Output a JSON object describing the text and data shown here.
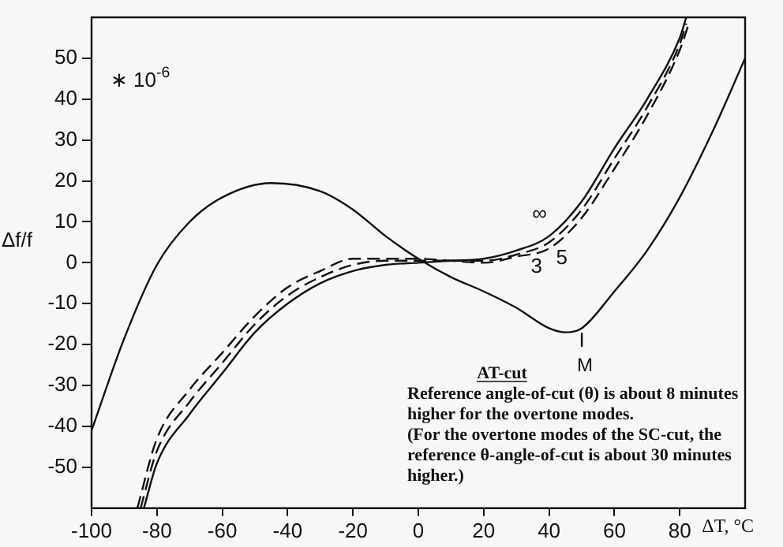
{
  "chart_data": {
    "type": "line",
    "xlabel": "ΔT, °C",
    "ylabel": "Δf/f",
    "xlim": [
      -100,
      100
    ],
    "ylim": [
      -60,
      60
    ],
    "xticks": [
      -100,
      -80,
      -60,
      -40,
      -20,
      0,
      20,
      40,
      60,
      80
    ],
    "yticks": [
      -50,
      -40,
      -30,
      -20,
      -10,
      0,
      10,
      20,
      30,
      40,
      50
    ],
    "grid": false,
    "legend": false,
    "series": [
      {
        "name": "I",
        "color": "#111111",
        "line_style": "solid",
        "x": [
          -100,
          -90,
          -80,
          -70,
          -60,
          -45,
          -30,
          -20,
          -10,
          0,
          10,
          20,
          30,
          40,
          45,
          50,
          60,
          70,
          80,
          90,
          100
        ],
        "values": [
          -41,
          -18.5,
          -0.5,
          10,
          16,
          19.5,
          17.5,
          13,
          6.5,
          1,
          -3.5,
          -7,
          -11,
          -16,
          -17,
          -16,
          -7,
          3,
          16,
          32,
          50
        ]
      },
      {
        "name": "∞",
        "color": "#111111",
        "line_style": "solid",
        "x": [
          -84,
          -80,
          -70,
          -60,
          -50,
          -40,
          -30,
          -20,
          -10,
          0,
          10,
          20,
          30,
          40,
          50,
          60,
          70,
          80,
          82
        ],
        "values": [
          -60,
          -49,
          -37,
          -27,
          -17,
          -10,
          -5,
          -2,
          -0.5,
          0,
          0.5,
          1,
          3,
          6.5,
          15,
          28,
          40,
          55,
          60
        ]
      },
      {
        "name": "5",
        "color": "#111111",
        "line_style": "dashed",
        "x": [
          -85,
          -80,
          -70,
          -60,
          -50,
          -40,
          -30,
          -20,
          -10,
          0,
          10,
          20,
          30,
          40,
          50,
          60,
          70,
          80,
          82
        ],
        "values": [
          -60,
          -46,
          -34,
          -24.5,
          -15,
          -8,
          -3.5,
          -0.5,
          0.5,
          0.5,
          0.5,
          0.5,
          2,
          5,
          13,
          25.5,
          38,
          53.5,
          58.5
        ]
      },
      {
        "name": "3",
        "color": "#111111",
        "line_style": "dashed",
        "x": [
          -86,
          -80,
          -70,
          -60,
          -50,
          -40,
          -30,
          -20,
          -10,
          0,
          10,
          20,
          30,
          40,
          50,
          60,
          70,
          80,
          83
        ],
        "values": [
          -60,
          -43,
          -31,
          -22,
          -13,
          -6,
          -2,
          1,
          1,
          1,
          0.5,
          0,
          1.5,
          3.5,
          11,
          23,
          36,
          52,
          59
        ]
      }
    ],
    "annotations": [
      "∗ 10$^{-6}$",
      "AT-cut",
      "Reference angle-of-cut (θ) is about 8 minutes higher for the overtone modes.",
      "(For the overtone modes of the SC-cut, the reference θ-angle-of-cut is about 30 minutes higher.)",
      "M"
    ]
  }
}
